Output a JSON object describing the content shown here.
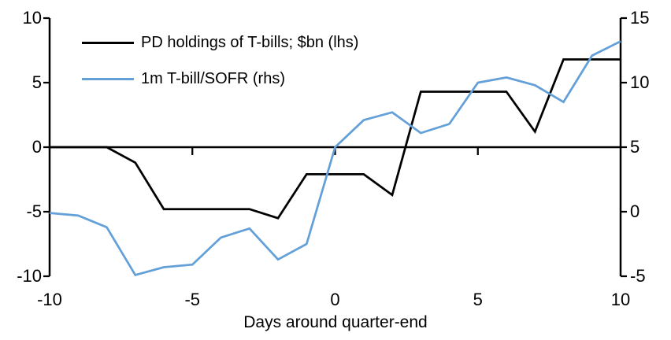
{
  "chart_data": {
    "type": "line",
    "title": "",
    "xlabel": "Days around quarter-end",
    "grid": false,
    "legend_position": "top-left",
    "x": [
      -10,
      -9,
      -8,
      -7,
      -6,
      -5,
      -4,
      -3,
      -2,
      -1,
      0,
      1,
      2,
      3,
      4,
      5,
      6,
      7,
      8,
      9,
      10
    ],
    "x_ticks": [
      -10,
      -5,
      0,
      5,
      10
    ],
    "left_axis": {
      "ticks": [
        10,
        5,
        0,
        -5,
        -10
      ],
      "min": -10,
      "max": 10
    },
    "right_axis": {
      "ticks": [
        15,
        10,
        5,
        0,
        -5
      ],
      "min": -5,
      "max": 15
    },
    "series": [
      {
        "name": "PD holdings of T-bills; $bn (lhs)",
        "axis": "left",
        "color": "#000000",
        "values": [
          0,
          0,
          0,
          -1.2,
          -4.8,
          -4.8,
          -4.8,
          -4.8,
          -5.5,
          -2.1,
          -2.1,
          -2.1,
          -3.7,
          4.3,
          4.3,
          4.3,
          4.3,
          1.2,
          6.8,
          6.8,
          6.8
        ]
      },
      {
        "name": "1m T-bill/SOFR (rhs)",
        "axis": "right",
        "color": "#63A0D8",
        "values": [
          -0.1,
          -0.3,
          -1.2,
          -4.9,
          -4.3,
          -4.1,
          -2.0,
          -1.3,
          -3.7,
          -2.5,
          5.0,
          7.1,
          7.7,
          6.1,
          6.8,
          10.0,
          10.4,
          9.8,
          8.5,
          12.1,
          13.2
        ]
      }
    ]
  }
}
